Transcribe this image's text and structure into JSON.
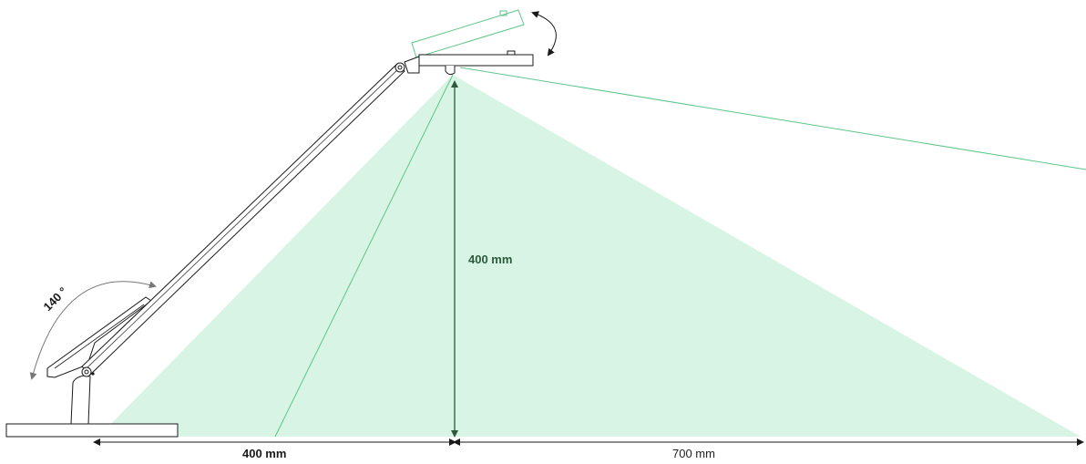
{
  "labels": {
    "angle": "140 °",
    "height": "400 mm",
    "reach_left": "400 mm",
    "reach_right": "700 mm"
  },
  "colors": {
    "light_fill": "#c8f0d8",
    "beam_line": "#5fc58a",
    "outline": "#1a1a1a",
    "dim_line": "#2d5a3c",
    "angle_arrow": "#777777"
  }
}
